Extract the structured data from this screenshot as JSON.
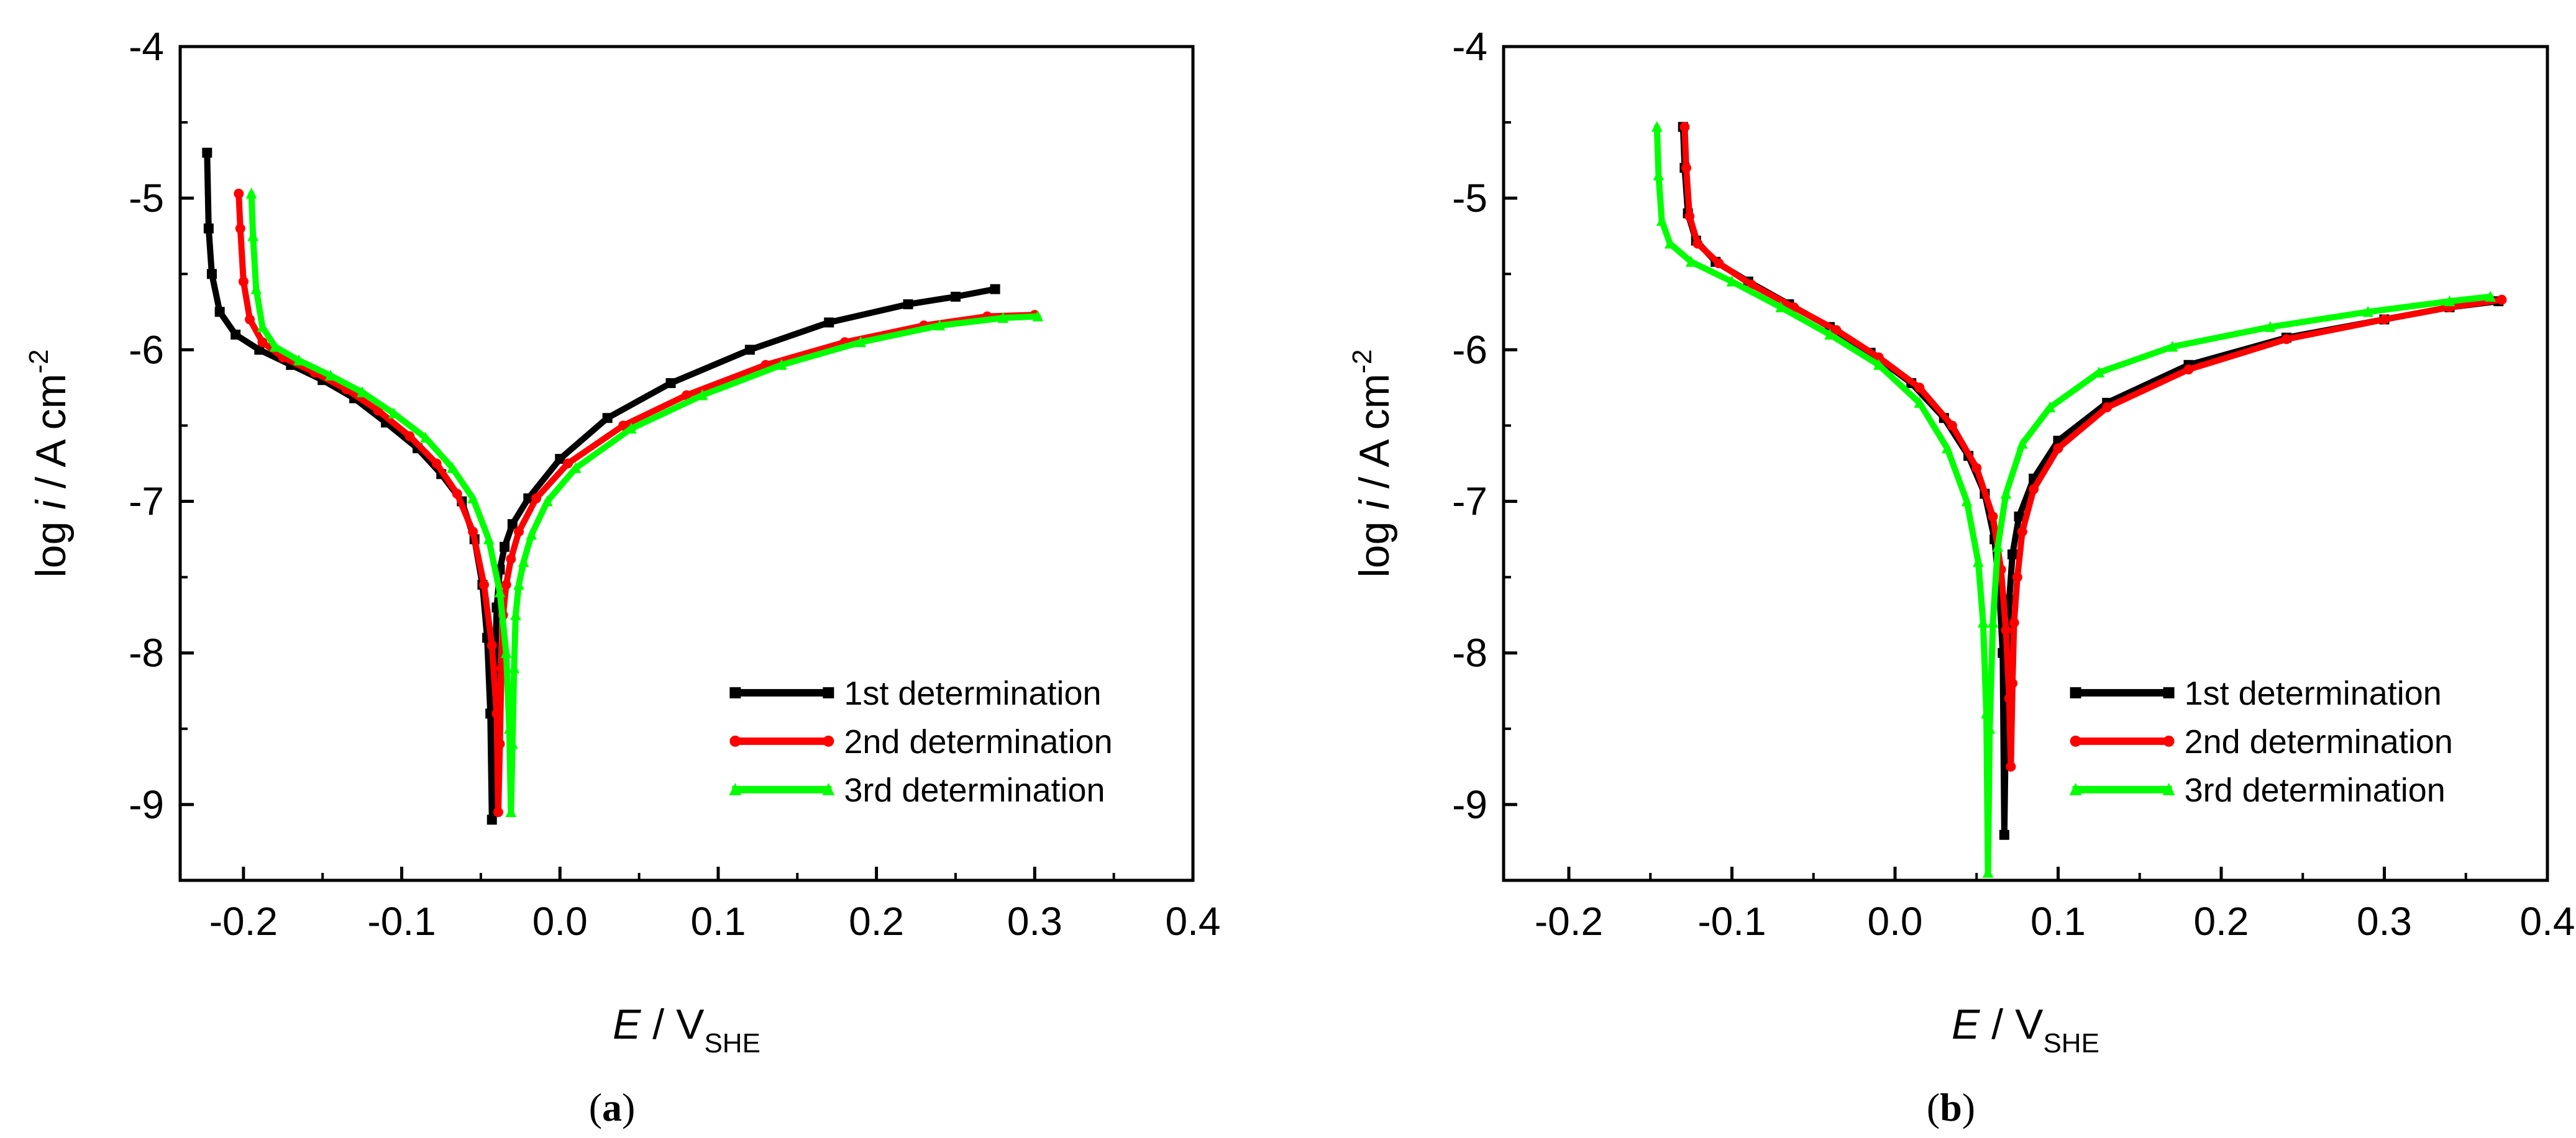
{
  "chart_data": [
    {
      "type": "line",
      "panel_caption": [
        "(",
        "a",
        ")"
      ],
      "xlabel": {
        "italic": "E",
        "main": " / V",
        "sub": "SHE"
      },
      "ylabel": {
        "pre": "log ",
        "italic": "i",
        "mid": " / A cm",
        "sup": "-2"
      },
      "xlim": [
        -0.24,
        0.4
      ],
      "ylim": [
        -9.5,
        -4
      ],
      "xticks": [
        -0.2,
        -0.1,
        0.0,
        0.1,
        0.2,
        0.3,
        0.4
      ],
      "xtick_labels": [
        "-0.2",
        "-0.1",
        "0.0",
        "0.1",
        "0.2",
        "0.3",
        "0.4"
      ],
      "yticks": [
        -4,
        -5,
        -6,
        -7,
        -8,
        -9
      ],
      "ytick_labels": [
        "-4",
        "-5",
        "-6",
        "-7",
        "-8",
        "-9"
      ],
      "legend_position": "bottom-right",
      "series": [
        {
          "name": "1st determination",
          "color": "#000000",
          "marker": "square",
          "x": [
            -0.223,
            -0.222,
            -0.22,
            -0.215,
            -0.205,
            -0.19,
            -0.17,
            -0.15,
            -0.13,
            -0.11,
            -0.09,
            -0.075,
            -0.062,
            -0.054,
            -0.049,
            -0.046,
            -0.044,
            -0.043,
            -0.042,
            -0.041,
            -0.04,
            -0.038,
            -0.035,
            -0.03,
            -0.02,
            0.0,
            0.03,
            0.07,
            0.12,
            0.17,
            0.22,
            0.25,
            0.275
          ],
          "y": [
            -4.7,
            -5.2,
            -5.5,
            -5.75,
            -5.9,
            -6.0,
            -6.1,
            -6.2,
            -6.32,
            -6.48,
            -6.65,
            -6.82,
            -7.0,
            -7.25,
            -7.55,
            -7.9,
            -8.4,
            -9.1,
            -8.6,
            -8.1,
            -7.7,
            -7.45,
            -7.3,
            -7.15,
            -6.98,
            -6.72,
            -6.45,
            -6.22,
            -6.0,
            -5.82,
            -5.7,
            -5.65,
            -5.6
          ]
        },
        {
          "name": "2nd determination",
          "color": "#ff0000",
          "marker": "circle",
          "x": [
            -0.203,
            -0.202,
            -0.2,
            -0.196,
            -0.188,
            -0.175,
            -0.155,
            -0.135,
            -0.115,
            -0.095,
            -0.078,
            -0.065,
            -0.055,
            -0.048,
            -0.043,
            -0.04,
            -0.039,
            -0.038,
            -0.037,
            -0.036,
            -0.034,
            -0.031,
            -0.026,
            -0.015,
            0.005,
            0.04,
            0.08,
            0.13,
            0.18,
            0.23,
            0.27,
            0.3
          ],
          "y": [
            -4.97,
            -5.2,
            -5.55,
            -5.8,
            -5.95,
            -6.05,
            -6.15,
            -6.26,
            -6.4,
            -6.57,
            -6.75,
            -6.95,
            -7.2,
            -7.55,
            -7.95,
            -8.4,
            -9.05,
            -8.6,
            -8.1,
            -7.75,
            -7.55,
            -7.38,
            -7.2,
            -6.98,
            -6.75,
            -6.5,
            -6.3,
            -6.1,
            -5.95,
            -5.84,
            -5.78,
            -5.77
          ]
        },
        {
          "name": "3rd determination",
          "color": "#00ff00",
          "marker": "triangle",
          "x": [
            -0.195,
            -0.194,
            -0.192,
            -0.188,
            -0.18,
            -0.165,
            -0.145,
            -0.125,
            -0.105,
            -0.085,
            -0.068,
            -0.055,
            -0.045,
            -0.038,
            -0.034,
            -0.032,
            -0.031,
            -0.03,
            -0.029,
            -0.028,
            -0.026,
            -0.023,
            -0.018,
            -0.008,
            0.01,
            0.045,
            0.09,
            0.14,
            0.19,
            0.24,
            0.28,
            0.302
          ],
          "y": [
            -4.97,
            -5.25,
            -5.6,
            -5.85,
            -5.98,
            -6.07,
            -6.17,
            -6.28,
            -6.42,
            -6.58,
            -6.78,
            -6.98,
            -7.25,
            -7.6,
            -8.0,
            -8.5,
            -9.05,
            -8.6,
            -8.1,
            -7.75,
            -7.55,
            -7.4,
            -7.22,
            -7.0,
            -6.78,
            -6.52,
            -6.3,
            -6.1,
            -5.95,
            -5.84,
            -5.79,
            -5.78
          ]
        }
      ]
    },
    {
      "type": "line",
      "panel_caption": [
        "(",
        "b",
        ")"
      ],
      "xlabel": {
        "italic": "E",
        "main": " / V",
        "sub": "SHE"
      },
      "ylabel": {
        "pre": "log ",
        "italic": "i",
        "mid": " / A cm",
        "sup": "-2"
      },
      "xlim": [
        -0.24,
        0.4
      ],
      "ylim": [
        -9.5,
        -4
      ],
      "xticks": [
        -0.2,
        -0.1,
        0.0,
        0.1,
        0.2,
        0.3,
        0.4
      ],
      "xtick_labels": [
        "-0.2",
        "-0.1",
        "0.0",
        "0.1",
        "0.2",
        "0.3",
        "0.4"
      ],
      "yticks": [
        -4,
        -5,
        -6,
        -7,
        -8,
        -9
      ],
      "ytick_labels": [
        "-4",
        "-5",
        "-6",
        "-7",
        "-8",
        "-9"
      ],
      "legend_position": "bottom-right",
      "series": [
        {
          "name": "1st determination",
          "color": "#000000",
          "marker": "square",
          "x": [
            -0.13,
            -0.129,
            -0.127,
            -0.122,
            -0.11,
            -0.09,
            -0.065,
            -0.04,
            -0.015,
            0.01,
            0.03,
            0.045,
            0.055,
            0.061,
            0.064,
            0.066,
            0.067,
            0.068,
            0.069,
            0.07,
            0.072,
            0.076,
            0.085,
            0.1,
            0.13,
            0.18,
            0.24,
            0.3,
            0.34,
            0.37
          ],
          "y": [
            -4.53,
            -4.8,
            -5.1,
            -5.28,
            -5.42,
            -5.55,
            -5.7,
            -5.85,
            -6.02,
            -6.22,
            -6.45,
            -6.7,
            -6.95,
            -7.25,
            -7.6,
            -8.0,
            -9.2,
            -8.4,
            -7.95,
            -7.65,
            -7.35,
            -7.1,
            -6.85,
            -6.6,
            -6.35,
            -6.1,
            -5.92,
            -5.8,
            -5.72,
            -5.68
          ]
        },
        {
          "name": "2nd determination",
          "color": "#ff0000",
          "marker": "circle",
          "x": [
            -0.129,
            -0.128,
            -0.126,
            -0.121,
            -0.108,
            -0.088,
            -0.062,
            -0.036,
            -0.01,
            0.015,
            0.035,
            0.05,
            0.06,
            0.065,
            0.068,
            0.07,
            0.071,
            0.072,
            0.073,
            0.075,
            0.078,
            0.085,
            0.1,
            0.13,
            0.18,
            0.24,
            0.3,
            0.34,
            0.372
          ],
          "y": [
            -4.53,
            -4.8,
            -5.12,
            -5.3,
            -5.43,
            -5.57,
            -5.72,
            -5.87,
            -6.05,
            -6.25,
            -6.5,
            -6.78,
            -7.1,
            -7.45,
            -7.85,
            -8.3,
            -8.75,
            -8.2,
            -7.8,
            -7.5,
            -7.2,
            -6.92,
            -6.65,
            -6.38,
            -6.13,
            -5.93,
            -5.8,
            -5.72,
            -5.67
          ]
        },
        {
          "name": "3rd determination",
          "color": "#00ff00",
          "marker": "triangle",
          "x": [
            -0.146,
            -0.145,
            -0.143,
            -0.138,
            -0.125,
            -0.1,
            -0.07,
            -0.04,
            -0.01,
            0.015,
            0.032,
            0.044,
            0.051,
            0.054,
            0.056,
            0.057,
            0.058,
            0.06,
            0.063,
            0.068,
            0.078,
            0.095,
            0.125,
            0.17,
            0.23,
            0.29,
            0.34,
            0.365
          ],
          "y": [
            -4.53,
            -4.85,
            -5.15,
            -5.3,
            -5.42,
            -5.55,
            -5.72,
            -5.9,
            -6.1,
            -6.35,
            -6.65,
            -7.0,
            -7.4,
            -7.8,
            -8.4,
            -9.45,
            -8.5,
            -7.8,
            -7.3,
            -6.95,
            -6.62,
            -6.38,
            -6.15,
            -5.98,
            -5.85,
            -5.75,
            -5.68,
            -5.65
          ]
        }
      ]
    }
  ]
}
